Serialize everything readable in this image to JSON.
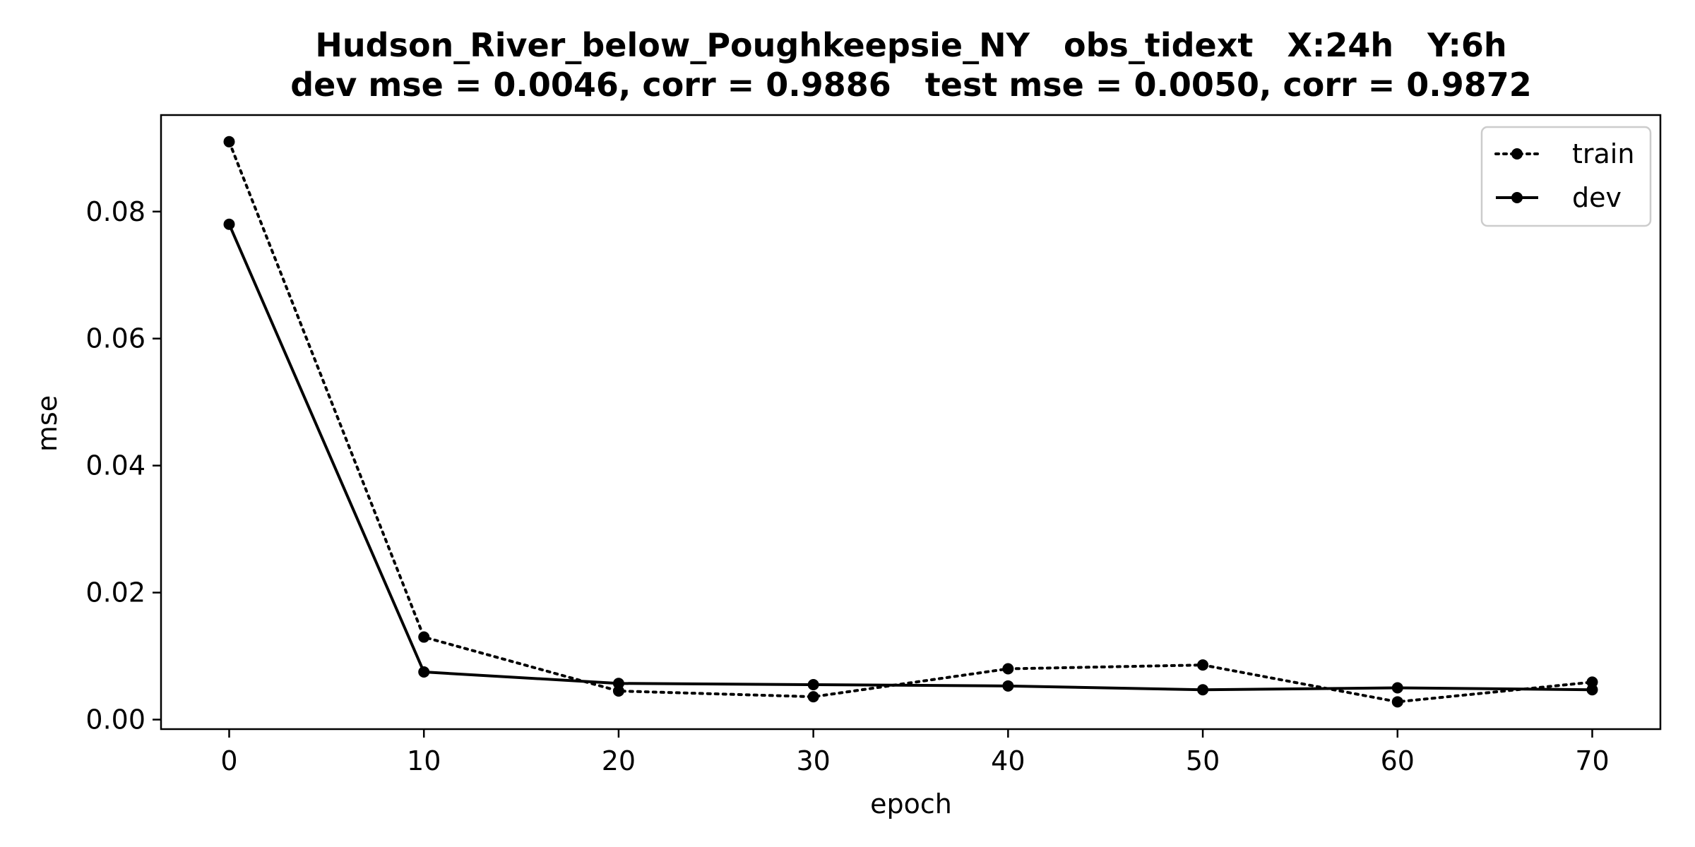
{
  "chart_data": {
    "type": "line",
    "title_line1": "Hudson_River_below_Poughkeepsie_NY   obs_tidext   X:24h   Y:6h",
    "title_line2": "dev mse = 0.0046, corr = 0.9886   test mse = 0.0050, corr = 0.9872",
    "xlabel": "epoch",
    "ylabel": "mse",
    "x": [
      0,
      10,
      20,
      30,
      40,
      50,
      60,
      70
    ],
    "xlim": [
      -3.5,
      73.5
    ],
    "ylim": [
      -0.0015,
      0.0952
    ],
    "xticks": [
      0,
      10,
      20,
      30,
      40,
      50,
      60,
      70
    ],
    "xtick_labels": [
      "0",
      "10",
      "20",
      "30",
      "40",
      "50",
      "60",
      "70"
    ],
    "yticks": [
      0.0,
      0.02,
      0.04,
      0.06,
      0.08
    ],
    "ytick_labels": [
      "0.00",
      "0.02",
      "0.04",
      "0.06",
      "0.08"
    ],
    "grid": false,
    "legend_position": "top-right",
    "series": [
      {
        "name": "train",
        "style": "dotted",
        "color": "#000000",
        "values": [
          0.091,
          0.013,
          0.0045,
          0.0036,
          0.008,
          0.0086,
          0.0028,
          0.0059
        ]
      },
      {
        "name": "dev",
        "style": "solid",
        "color": "#000000",
        "values": [
          0.078,
          0.0075,
          0.0057,
          0.0055,
          0.0053,
          0.0047,
          0.005,
          0.0047
        ]
      }
    ]
  }
}
